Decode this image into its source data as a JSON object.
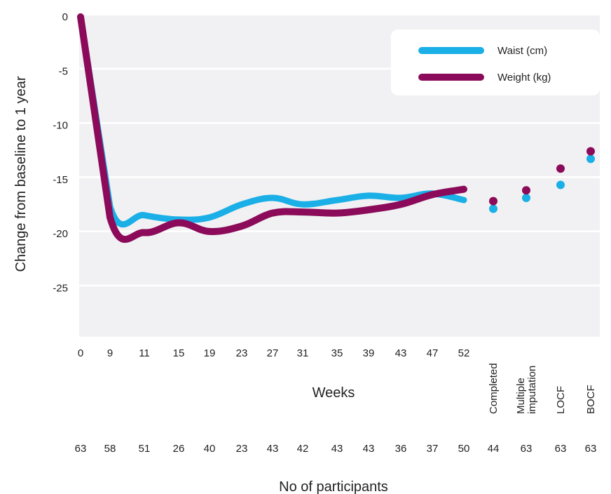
{
  "chart_data": {
    "type": "line",
    "ylabel": "Change from baseline to 1 year",
    "xlabel": "Weeks",
    "participants_label": "No of participants",
    "ylim": [
      -29.5,
      0
    ],
    "yticks": [
      0,
      -5,
      -10,
      -15,
      -20,
      -25
    ],
    "categories": [
      "0",
      "9",
      "11",
      "15",
      "19",
      "23",
      "27",
      "31",
      "35",
      "39",
      "43",
      "47",
      "52"
    ],
    "extra_categories": [
      "Completed",
      "Multiple\nimputation",
      "LOCF",
      "BOCF"
    ],
    "participants": [
      "63",
      "58",
      "51",
      "26",
      "40",
      "23",
      "43",
      "42",
      "43",
      "43",
      "36",
      "37",
      "50",
      "44",
      "63",
      "63",
      "63"
    ],
    "series": [
      {
        "name": "Waist (cm)",
        "color": "#1aafe6",
        "values": [
          0,
          -17.5,
          -18.3,
          -18.7,
          -18.5,
          -17.3,
          -16.7,
          -17.3,
          -16.9,
          -16.5,
          -16.7,
          -16.3,
          -16.9
        ],
        "summary_points": [
          -17.7,
          -16.7,
          -15.5,
          -13.1
        ]
      },
      {
        "name": "Weight (kg)",
        "color": "#8b0a5a",
        "values": [
          0,
          -18.5,
          -19.9,
          -19.0,
          -19.8,
          -19.3,
          -18.1,
          -18.0,
          -18.1,
          -17.8,
          -17.3,
          -16.4,
          -15.9
        ],
        "summary_points": [
          -17.0,
          -16.0,
          -14.0,
          -12.4
        ]
      }
    ],
    "legend_position": "top-right",
    "grid": "horizontal bands"
  }
}
